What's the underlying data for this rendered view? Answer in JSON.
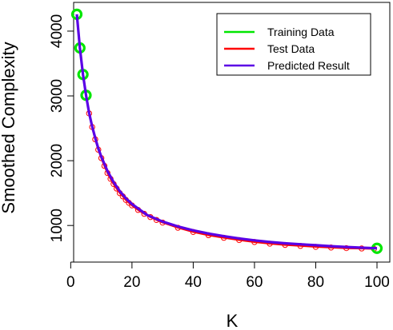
{
  "chart_data": {
    "type": "scatter",
    "title": "",
    "xlabel": "K",
    "ylabel": "Smoothed Complexity",
    "xlim": [
      2,
      100
    ],
    "ylim": [
      620,
      4320
    ],
    "x_ticks": [
      0,
      20,
      40,
      60,
      80,
      100
    ],
    "y_ticks": [
      1000,
      2000,
      3000,
      4000
    ],
    "grid": false,
    "legend_position": "top-right",
    "series": [
      {
        "name": "Training Data",
        "kind": "points",
        "color": "#00e600",
        "x": [
          2,
          3,
          4,
          5,
          100
        ],
        "y": [
          4260,
          3740,
          3330,
          3010,
          648
        ]
      },
      {
        "name": "Test Data",
        "kind": "points-and-line",
        "color": "#ff0000",
        "x": [
          6,
          7,
          8,
          9,
          10,
          11,
          12,
          13,
          14,
          15,
          16,
          17,
          18,
          19,
          20,
          22,
          24,
          26,
          28,
          30,
          35,
          40,
          45,
          50,
          55,
          60,
          65,
          70,
          75,
          80,
          85,
          90,
          95,
          99
        ],
        "y": [
          2730,
          2520,
          2330,
          2170,
          2040,
          1920,
          1810,
          1720,
          1640,
          1570,
          1500,
          1450,
          1395,
          1350,
          1310,
          1240,
          1180,
          1130,
          1085,
          1045,
          965,
          900,
          850,
          810,
          775,
          745,
          720,
          700,
          685,
          670,
          660,
          650,
          645,
          640
        ]
      },
      {
        "name": "Predicted Result",
        "kind": "line",
        "color": "#5a00e6",
        "x": [
          2,
          3,
          4,
          5,
          6,
          7,
          8,
          9,
          10,
          12,
          14,
          16,
          18,
          20,
          25,
          30,
          35,
          40,
          45,
          50,
          55,
          60,
          65,
          70,
          75,
          80,
          85,
          90,
          95,
          100
        ],
        "y": [
          4260,
          3740,
          3330,
          3010,
          2740,
          2530,
          2350,
          2190,
          2060,
          1840,
          1670,
          1530,
          1420,
          1330,
          1160,
          1060,
          985,
          925,
          875,
          835,
          800,
          770,
          745,
          725,
          710,
          695,
          680,
          668,
          657,
          648
        ]
      }
    ]
  }
}
